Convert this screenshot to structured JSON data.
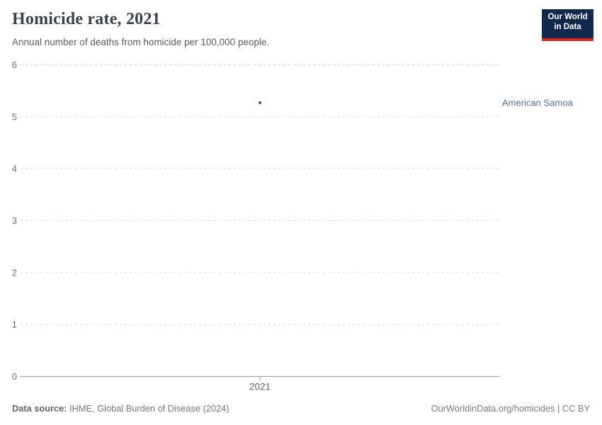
{
  "header": {
    "title": "Homicide rate, 2021",
    "subtitle": "Annual number of deaths from homicide per 100,000 people."
  },
  "logo": {
    "line1": "Our World",
    "line2": "in Data",
    "bg_color": "#12294e",
    "accent_color": "#dc2a1e"
  },
  "chart_data": {
    "type": "scatter",
    "title": "Homicide rate, 2021",
    "series": [
      {
        "name": "American Samoa",
        "points": [
          {
            "x": 2021,
            "y": 5.27
          }
        ],
        "point_color": "#3a5a94",
        "label_color": "#4d6fa5"
      }
    ],
    "xlabel": "",
    "ylabel": "",
    "ylim": [
      0,
      6
    ],
    "yticks": [
      0,
      1,
      2,
      3,
      4,
      5,
      6
    ],
    "xticks": [
      2021
    ],
    "grid": "horizontal-dashed",
    "grid_color": "#d9d9d9",
    "axis_color": "#a5a5a5",
    "legend_position": "label-right-of-plot"
  },
  "footer": {
    "source_label": "Data source:",
    "source_text": "IHME, Global Burden of Disease (2024)",
    "link_text": "OurWorldinData.org/homicides | CC BY"
  }
}
